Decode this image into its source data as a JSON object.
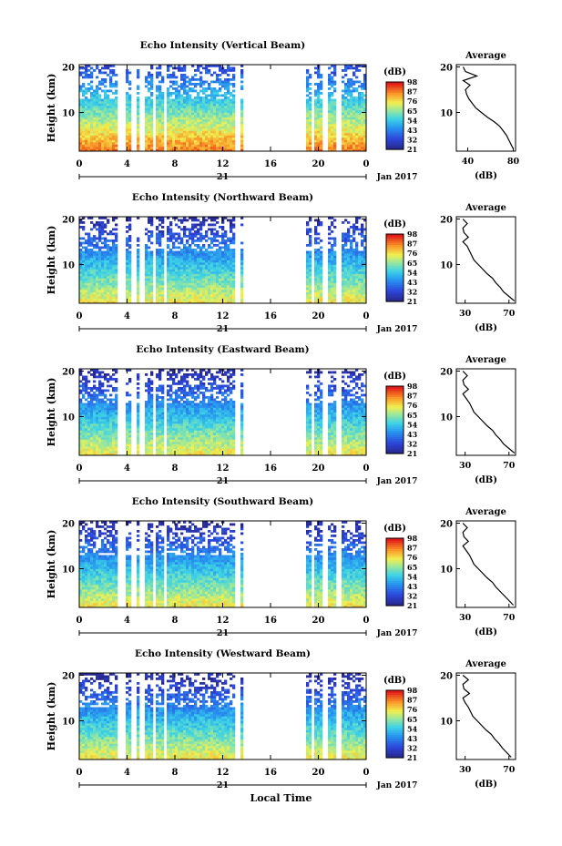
{
  "xlabel": "Local Time",
  "date_label": "Jan 2017",
  "chart_data": [
    {
      "type": "heatmap",
      "title": "Echo Intensity (Vertical Beam)",
      "ylabel": "Height (km)",
      "x_ticks": [
        "0",
        "4",
        "8",
        "12",
        "16",
        "20",
        "0"
      ],
      "xlim": [
        0,
        24
      ],
      "y_ticks": [
        10,
        20
      ],
      "ylim": [
        1.5,
        20.5
      ],
      "day_label": "21",
      "colorbar": {
        "unit": "(dB)",
        "ticks": [
          "21",
          "32",
          "43",
          "54",
          "65",
          "76",
          "87",
          "98"
        ]
      },
      "data_gaps_hours": [
        [
          3.1,
          3.8
        ],
        [
          4.4,
          4.7
        ],
        [
          5.1,
          5.5
        ],
        [
          6.2,
          6.5
        ],
        [
          7.0,
          7.4
        ],
        [
          13.0,
          13.4
        ],
        [
          13.7,
          19.0
        ],
        [
          19.5,
          19.7
        ],
        [
          20.4,
          20.8
        ],
        [
          21.6,
          21.9
        ]
      ],
      "average_profile": {
        "title": "Average",
        "xlabel": "(dB)",
        "x_ticks": [
          40,
          80
        ],
        "xlim": [
          30,
          82
        ],
        "y_ticks": [
          10,
          20
        ],
        "ylim": [
          1.5,
          20.5
        ],
        "height_km": [
          2,
          3,
          4,
          5,
          6,
          7,
          8,
          9,
          10,
          11,
          12,
          13,
          14,
          15,
          16,
          17,
          18,
          19,
          20
        ],
        "values": [
          80,
          78,
          76,
          74,
          71,
          68,
          63,
          57,
          52,
          47,
          44,
          41,
          39,
          38,
          42,
          36,
          48,
          38,
          36
        ]
      }
    },
    {
      "type": "heatmap",
      "title": "Echo Intensity (Northward Beam)",
      "ylabel": "Height (km)",
      "x_ticks": [
        "0",
        "4",
        "8",
        "12",
        "16",
        "20",
        "0"
      ],
      "xlim": [
        0,
        24
      ],
      "y_ticks": [
        10,
        20
      ],
      "ylim": [
        1.5,
        20.5
      ],
      "day_label": "21",
      "colorbar": {
        "unit": "(dB)",
        "ticks": [
          "21",
          "32",
          "43",
          "54",
          "65",
          "76",
          "87",
          "98"
        ]
      },
      "data_gaps_hours": [
        [
          3.1,
          3.8
        ],
        [
          4.4,
          4.7
        ],
        [
          5.1,
          5.5
        ],
        [
          6.2,
          6.5
        ],
        [
          7.0,
          7.4
        ],
        [
          13.0,
          13.4
        ],
        [
          13.7,
          19.0
        ],
        [
          19.5,
          19.7
        ],
        [
          20.4,
          20.8
        ],
        [
          21.6,
          21.9
        ]
      ],
      "average_profile": {
        "title": "Average",
        "xlabel": "(dB)",
        "x_ticks": [
          30,
          70
        ],
        "xlim": [
          22,
          76
        ],
        "y_ticks": [
          10,
          20
        ],
        "ylim": [
          1.5,
          20.5
        ],
        "height_km": [
          2,
          3,
          4,
          5,
          6,
          7,
          8,
          9,
          10,
          11,
          12,
          13,
          14,
          15,
          16,
          17,
          18,
          19,
          20
        ],
        "values": [
          75,
          70,
          65,
          62,
          58,
          55,
          50,
          46,
          42,
          38,
          36,
          34,
          32,
          28,
          33,
          29,
          28,
          32,
          28
        ]
      }
    },
    {
      "type": "heatmap",
      "title": "Echo Intensity (Eastward Beam)",
      "ylabel": "Height (km)",
      "x_ticks": [
        "0",
        "4",
        "8",
        "12",
        "16",
        "20",
        "0"
      ],
      "xlim": [
        0,
        24
      ],
      "y_ticks": [
        10,
        20
      ],
      "ylim": [
        1.5,
        20.5
      ],
      "day_label": "21",
      "colorbar": {
        "unit": "(dB)",
        "ticks": [
          "21",
          "32",
          "43",
          "54",
          "65",
          "76",
          "87",
          "98"
        ]
      },
      "data_gaps_hours": [
        [
          3.1,
          3.8
        ],
        [
          4.4,
          4.7
        ],
        [
          5.1,
          5.5
        ],
        [
          6.2,
          6.5
        ],
        [
          7.0,
          7.4
        ],
        [
          13.0,
          13.4
        ],
        [
          13.7,
          19.0
        ],
        [
          19.5,
          19.7
        ],
        [
          20.4,
          20.8
        ],
        [
          21.6,
          21.9
        ]
      ],
      "average_profile": {
        "title": "Average",
        "xlabel": "(dB)",
        "x_ticks": [
          30,
          70
        ],
        "xlim": [
          22,
          76
        ],
        "y_ticks": [
          10,
          20
        ],
        "ylim": [
          1.5,
          20.5
        ],
        "height_km": [
          2,
          3,
          4,
          5,
          6,
          7,
          8,
          9,
          10,
          11,
          12,
          13,
          14,
          15,
          16,
          17,
          18,
          19,
          20
        ],
        "values": [
          75,
          70,
          65,
          62,
          58,
          55,
          50,
          46,
          42,
          38,
          36,
          34,
          31,
          28,
          33,
          29,
          28,
          32,
          28
        ]
      }
    },
    {
      "type": "heatmap",
      "title": "Echo Intensity (Southward Beam)",
      "ylabel": "Height (km)",
      "x_ticks": [
        "0",
        "4",
        "8",
        "12",
        "16",
        "20",
        "0"
      ],
      "xlim": [
        0,
        24
      ],
      "y_ticks": [
        10,
        20
      ],
      "ylim": [
        1.5,
        20.5
      ],
      "day_label": "21",
      "colorbar": {
        "unit": "(dB)",
        "ticks": [
          "21",
          "32",
          "43",
          "54",
          "65",
          "76",
          "87",
          "98"
        ]
      },
      "data_gaps_hours": [
        [
          3.1,
          3.8
        ],
        [
          4.4,
          4.7
        ],
        [
          5.1,
          5.5
        ],
        [
          6.2,
          6.5
        ],
        [
          7.0,
          7.4
        ],
        [
          13.0,
          13.4
        ],
        [
          13.7,
          19.0
        ],
        [
          19.5,
          19.7
        ],
        [
          20.4,
          20.8
        ],
        [
          21.6,
          21.9
        ]
      ],
      "average_profile": {
        "title": "Average",
        "xlabel": "(dB)",
        "x_ticks": [
          30,
          70
        ],
        "xlim": [
          22,
          76
        ],
        "y_ticks": [
          10,
          20
        ],
        "ylim": [
          1.5,
          20.5
        ],
        "height_km": [
          2,
          3,
          4,
          5,
          6,
          7,
          8,
          9,
          10,
          11,
          12,
          13,
          14,
          15,
          16,
          17,
          18,
          19,
          20
        ],
        "values": [
          74,
          70,
          66,
          62,
          58,
          55,
          50,
          46,
          42,
          38,
          36,
          34,
          31,
          28,
          33,
          29,
          28,
          32,
          28
        ]
      }
    },
    {
      "type": "heatmap",
      "title": "Echo Intensity (Westward Beam)",
      "ylabel": "Height (km)",
      "x_ticks": [
        "0",
        "4",
        "8",
        "12",
        "16",
        "20",
        "0"
      ],
      "xlim": [
        0,
        24
      ],
      "y_ticks": [
        10,
        20
      ],
      "ylim": [
        1.5,
        20.5
      ],
      "day_label": "21",
      "colorbar": {
        "unit": "(dB)",
        "ticks": [
          "21",
          "32",
          "43",
          "54",
          "65",
          "76",
          "87",
          "98"
        ]
      },
      "data_gaps_hours": [
        [
          3.1,
          3.8
        ],
        [
          4.4,
          4.7
        ],
        [
          5.1,
          5.5
        ],
        [
          6.2,
          6.5
        ],
        [
          7.0,
          7.4
        ],
        [
          13.0,
          13.4
        ],
        [
          13.7,
          19.0
        ],
        [
          19.5,
          19.7
        ],
        [
          20.4,
          20.8
        ],
        [
          21.6,
          21.9
        ]
      ],
      "average_profile": {
        "title": "Average",
        "xlabel": "(dB)",
        "x_ticks": [
          30,
          70
        ],
        "xlim": [
          22,
          76
        ],
        "y_ticks": [
          10,
          20
        ],
        "ylim": [
          1.5,
          20.5
        ],
        "height_km": [
          2,
          3,
          4,
          5,
          6,
          7,
          8,
          9,
          10,
          11,
          12,
          13,
          14,
          15,
          16,
          17,
          18,
          19,
          20
        ],
        "values": [
          72,
          68,
          64,
          61,
          57,
          54,
          49,
          45,
          41,
          37,
          35,
          33,
          30,
          28,
          34,
          29,
          28,
          33,
          28
        ]
      }
    }
  ]
}
